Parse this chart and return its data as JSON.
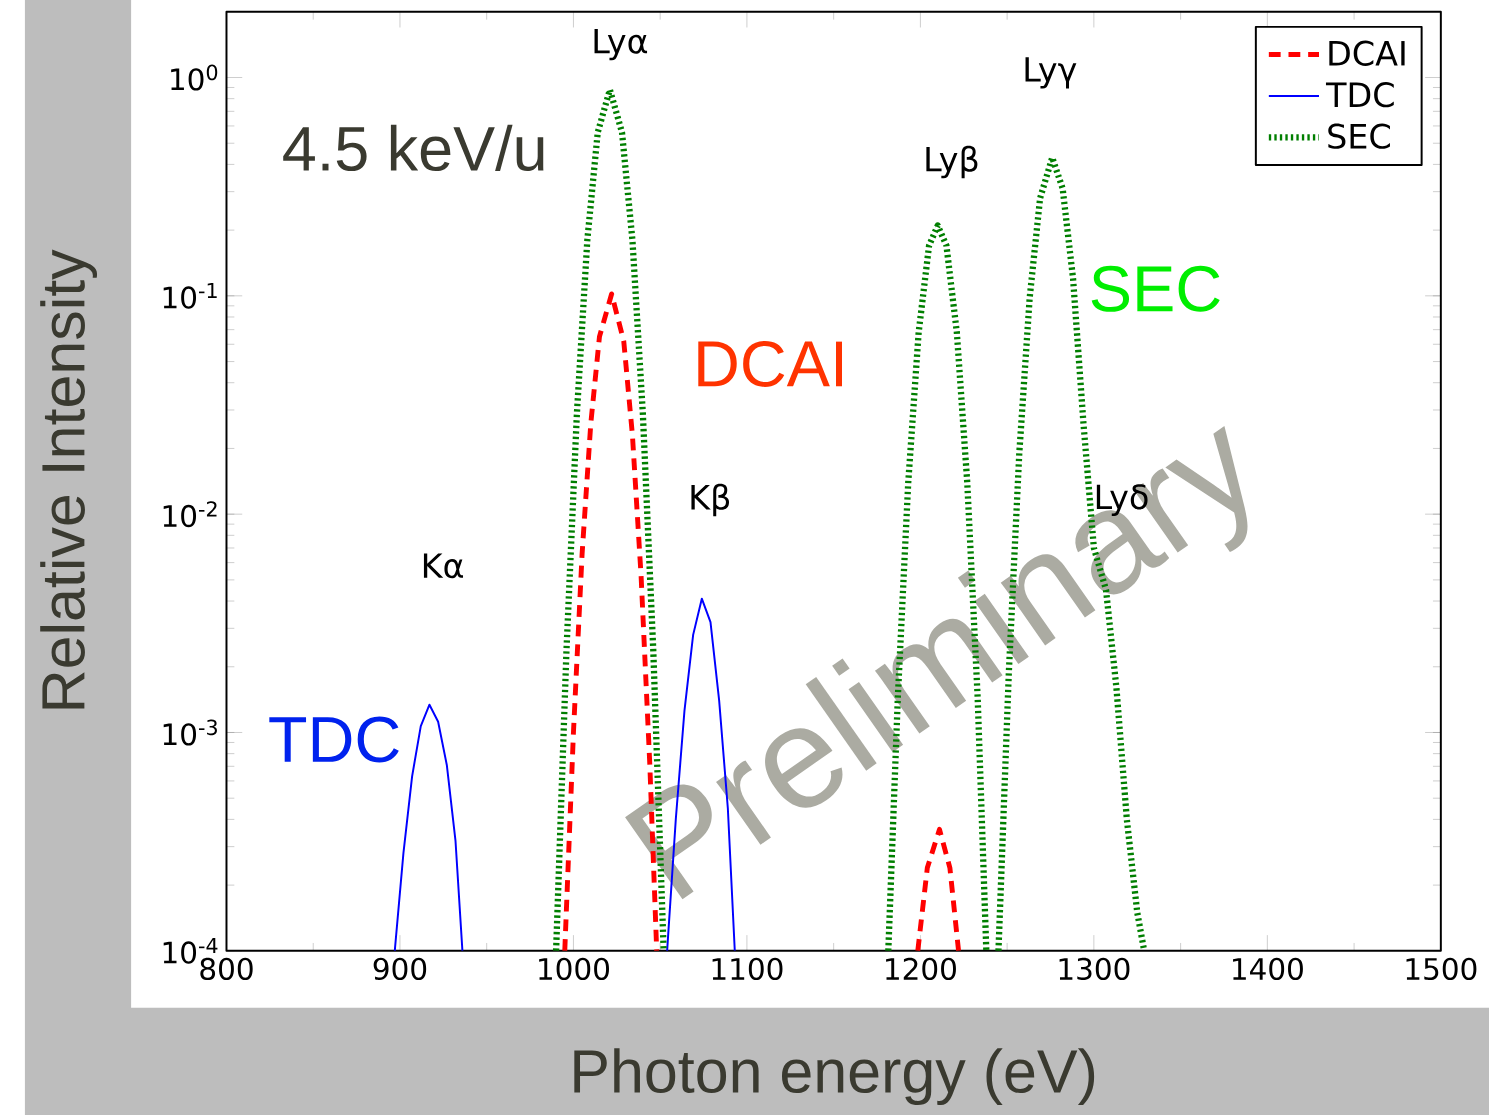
{
  "chart_data": {
    "type": "line",
    "xlabel": "Photon energy (eV)",
    "ylabel": "Relative Intensity",
    "log": "y",
    "xlim": [
      800,
      1500
    ],
    "ylim": [
      0.0001,
      2
    ],
    "xticks": [
      800,
      900,
      1000,
      1100,
      1200,
      1300,
      1400,
      1500
    ],
    "yticks": [
      {
        "value": 0.0001,
        "label": "10$^{-4}$"
      },
      {
        "value": 0.001,
        "label": "10$^{-3}$"
      },
      {
        "value": 0.01,
        "label": "10$^{-2}$"
      },
      {
        "value": 0.1,
        "label": "10$^{-1}$"
      },
      {
        "value": 1,
        "label": "10$^{0}$"
      }
    ],
    "legend": "top right",
    "marker": "none",
    "series": [
      {
        "name": "DCAI",
        "color": "#ff0000",
        "line_style": "dashed",
        "x": [
          995,
          1000,
          1005,
          1010,
          1015,
          1022,
          1029,
          1034,
          1039,
          1044,
          1048,
          1100,
          1198.5,
          1204,
          1211,
          1217,
          1222
        ],
        "values": [
          0.0001,
          0.001,
          0.0066,
          0.026,
          0.065,
          0.102,
          0.062,
          0.023,
          0.0052,
          0.00072,
          0.0001,
          null,
          0.0001,
          0.00024,
          0.00036,
          0.00024,
          0.0001
        ]
      },
      {
        "name": "TDC",
        "color": "#0000ff",
        "line_style": "solid",
        "x": [
          897,
          902,
          907,
          912,
          917,
          922,
          927,
          932,
          936,
          1000,
          1054,
          1059,
          1064,
          1069,
          1074,
          1079,
          1084,
          1089,
          1093
        ],
        "values": [
          0.0001,
          0.00028,
          0.00063,
          0.00107,
          0.00134,
          0.00112,
          0.00071,
          0.00032,
          0.0001,
          null,
          0.0001,
          0.0004,
          0.00126,
          0.0028,
          0.0041,
          0.0032,
          0.0014,
          0.00045,
          0.0001
        ]
      },
      {
        "name": "SEC",
        "color": "#007f00",
        "line_style": "dotted",
        "x": [
          990,
          996,
          1002,
          1008,
          1014,
          1021,
          1028,
          1034,
          1040,
          1046,
          1052,
          1100,
          1181.5,
          1187,
          1193,
          1199,
          1205,
          1210,
          1215,
          1221,
          1227,
          1233,
          1238,
          1241,
          1245,
          1251,
          1257,
          1263,
          1269,
          1276,
          1282,
          1288,
          1294,
          1300,
          1307,
          1313,
          1319,
          1325,
          1329
        ],
        "values": [
          0.0001,
          0.0024,
          0.029,
          0.18,
          0.56,
          0.88,
          0.56,
          0.18,
          0.029,
          0.0024,
          0.0001,
          null,
          0.0001,
          0.00145,
          0.014,
          0.068,
          0.17,
          0.21,
          0.17,
          0.068,
          0.014,
          0.00145,
          0.0001,
          null,
          0.0001,
          0.0019,
          0.019,
          0.098,
          0.28,
          0.43,
          0.31,
          0.12,
          0.026,
          0.007,
          0.0045,
          0.0016,
          0.0004,
          0.00015,
          0.0001
        ]
      }
    ],
    "annotations": [
      "4.5 keV/u",
      "Kα",
      "Kβ",
      "Lyα",
      "Lyβ",
      "Lyγ",
      "Lyδ",
      "TDC",
      "DCAI",
      "SEC",
      "Preliminary"
    ]
  }
}
